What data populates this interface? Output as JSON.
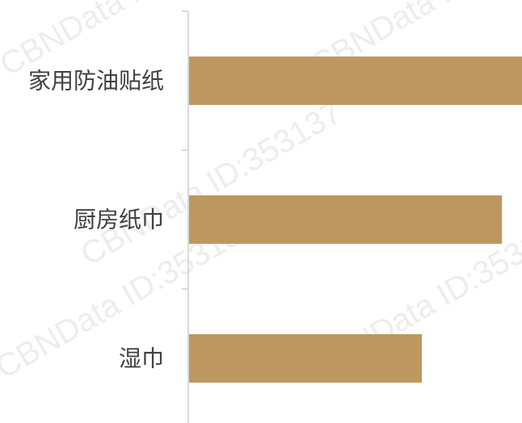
{
  "chart_data": {
    "type": "bar",
    "orientation": "horizontal",
    "categories": [
      "家用防油贴纸",
      "厨房纸巾",
      "湿巾"
    ],
    "values": [
      100,
      94,
      70
    ],
    "title": "",
    "xlabel": "",
    "ylabel": "",
    "xlim": [
      0,
      100
    ],
    "grid": false,
    "legend": "none",
    "bar_color": "#BC9860",
    "axis_color": "#D9D9D9"
  },
  "watermark": "CBNData ID:353137"
}
